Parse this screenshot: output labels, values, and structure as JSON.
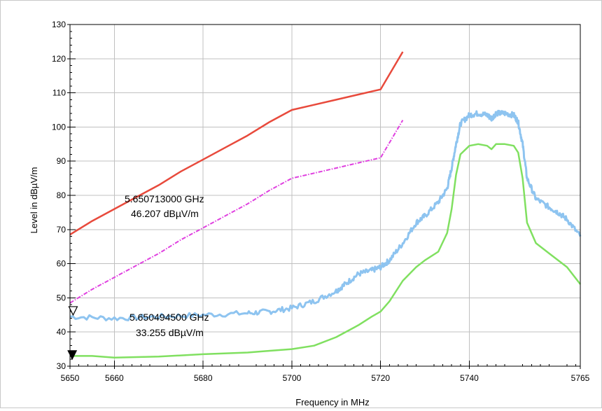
{
  "chart_data": {
    "type": "line",
    "title": "",
    "xlabel": "Frequency in MHz",
    "ylabel": "Level in dBµV/m",
    "xlim": [
      5650,
      5765
    ],
    "ylim": [
      30,
      130
    ],
    "x_ticks": [
      5650,
      5660,
      5680,
      5700,
      5720,
      5740,
      5765
    ],
    "y_ticks": [
      30,
      40,
      50,
      60,
      70,
      80,
      90,
      100,
      110,
      120,
      130
    ],
    "grid": true,
    "legend": "none",
    "series": [
      {
        "color": "#e84a3c",
        "style": "solid",
        "x": [
          5650,
          5655,
          5660,
          5665,
          5670,
          5675,
          5680,
          5685,
          5690,
          5695,
          5700,
          5705,
          5710,
          5715,
          5720,
          5725
        ],
        "y": [
          68.5,
          72.5,
          76.0,
          79.5,
          83.0,
          87.0,
          90.5,
          94.0,
          97.5,
          101.5,
          105.0,
          106.5,
          108.0,
          109.5,
          111.0,
          122.0
        ]
      },
      {
        "color": "#e040e0",
        "style": "dashdot",
        "x": [
          5650,
          5655,
          5660,
          5665,
          5670,
          5675,
          5680,
          5685,
          5690,
          5695,
          5700,
          5705,
          5710,
          5715,
          5720,
          5725
        ],
        "y": [
          48.5,
          52.5,
          56.0,
          59.5,
          63.0,
          67.0,
          70.5,
          74.0,
          77.5,
          81.5,
          85.0,
          86.5,
          88.0,
          89.5,
          91.0,
          102.0
        ]
      },
      {
        "color": "#8ec4f0",
        "style": "noisy",
        "x": [
          5650,
          5660,
          5670,
          5680,
          5690,
          5695,
          5700,
          5705,
          5710,
          5712,
          5715,
          5718,
          5720,
          5722,
          5725,
          5728,
          5730,
          5733,
          5735,
          5736,
          5737,
          5738,
          5740,
          5742,
          5744,
          5745,
          5746,
          5748,
          5750,
          5751,
          5752,
          5753,
          5755,
          5758,
          5760,
          5762,
          5765
        ],
        "y": [
          44.5,
          44.0,
          44.5,
          45.0,
          45.5,
          46.0,
          47.0,
          49.0,
          52.0,
          54.0,
          57.0,
          58.0,
          59.0,
          61.0,
          66.0,
          72.0,
          74.0,
          78.0,
          82.0,
          88.0,
          95.0,
          101.0,
          103.5,
          104.0,
          103.5,
          102.5,
          104.0,
          104.0,
          103.5,
          101.5,
          95.0,
          85.0,
          79.0,
          76.5,
          75.0,
          73.0,
          68.0
        ]
      },
      {
        "color": "#80e060",
        "style": "solid",
        "x": [
          5650,
          5655,
          5660,
          5670,
          5680,
          5690,
          5695,
          5700,
          5705,
          5710,
          5715,
          5718,
          5720,
          5722,
          5725,
          5728,
          5730,
          5733,
          5735,
          5736,
          5737,
          5738,
          5740,
          5742,
          5744,
          5745,
          5746,
          5748,
          5750,
          5751,
          5752,
          5753,
          5755,
          5758,
          5760,
          5762,
          5765
        ],
        "y": [
          33.0,
          33.0,
          32.5,
          32.8,
          33.5,
          34.0,
          34.5,
          35.0,
          36.0,
          38.5,
          42.0,
          44.5,
          46.0,
          49.0,
          55.0,
          59.0,
          61.0,
          63.5,
          69.0,
          76.0,
          86.0,
          92.0,
          94.5,
          95.0,
          94.5,
          93.5,
          95.0,
          95.0,
          94.5,
          92.5,
          85.0,
          72.0,
          66.0,
          63.0,
          61.0,
          59.0,
          54.0
        ]
      }
    ],
    "annotations": [
      {
        "name": "upper-marker",
        "symbol": "open-triangle",
        "x": 5650.7,
        "y": 46.2,
        "freq_label": "5.650713000 GHz",
        "level_label": "46.207 dBµV/m"
      },
      {
        "name": "lower-marker",
        "symbol": "filled-triangle",
        "x": 5650.5,
        "y": 33.3,
        "freq_label": "5.650494500 GHz",
        "level_label": "33.255 dBµV/m"
      }
    ]
  }
}
